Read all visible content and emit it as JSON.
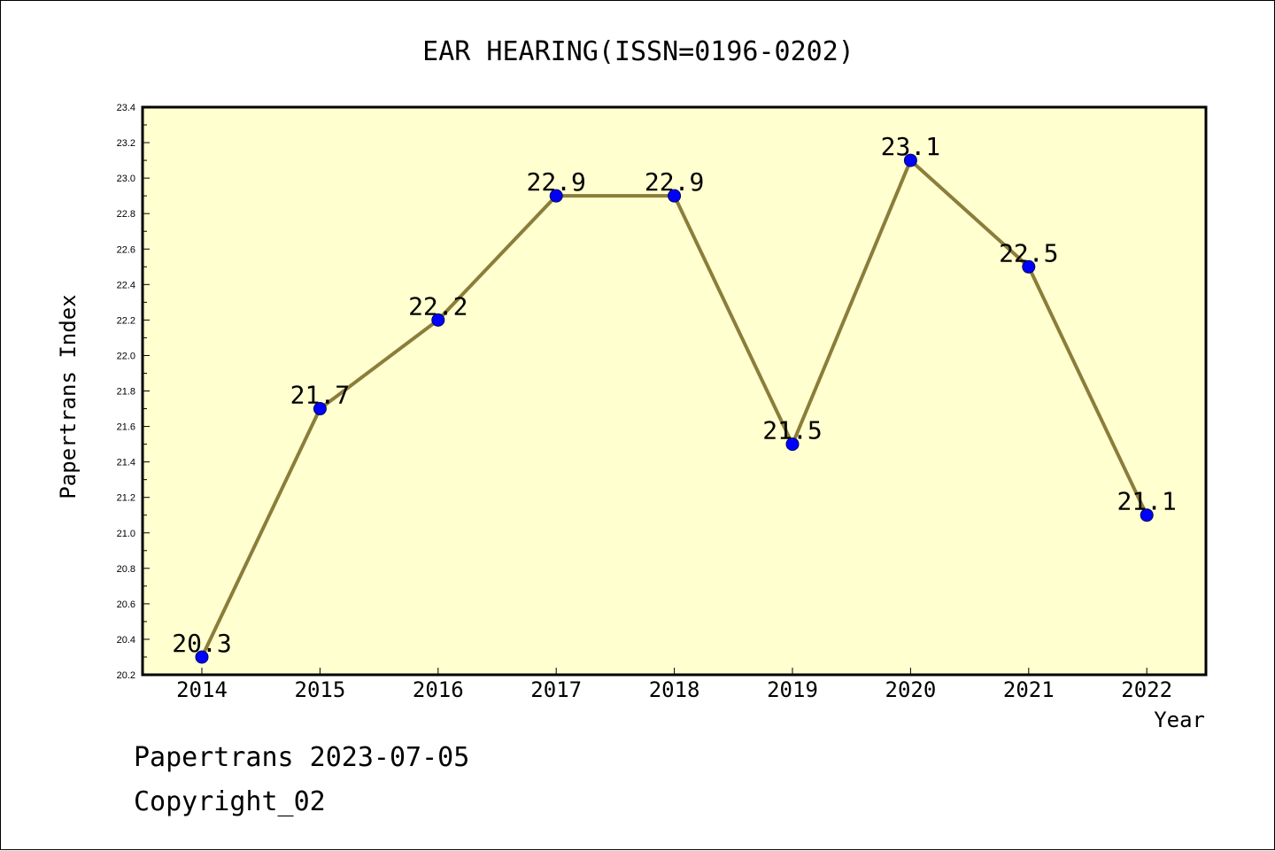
{
  "chart_data": {
    "type": "line",
    "title": "EAR HEARING(ISSN=0196-0202)",
    "xlabel": "Year",
    "ylabel": "Papertrans Index",
    "categories": [
      "2014",
      "2015",
      "2016",
      "2017",
      "2018",
      "2019",
      "2020",
      "2021",
      "2022"
    ],
    "series": [
      {
        "values": [
          20.3,
          21.7,
          22.2,
          22.9,
          22.9,
          21.5,
          23.1,
          22.5,
          21.1
        ]
      }
    ],
    "data_labels": [
      "20.3",
      "21.7",
      "22.2",
      "22.9",
      "22.9",
      "21.5",
      "23.1",
      "22.5",
      "21.1"
    ],
    "ylim": [
      20.2,
      23.4
    ],
    "yticks": [
      "20.2",
      "20.4",
      "20.6",
      "20.8",
      "21.0",
      "21.2",
      "21.4",
      "21.6",
      "21.8",
      "22.0",
      "22.2",
      "22.4",
      "22.6",
      "22.8",
      "23.0",
      "23.2",
      "23.4"
    ],
    "grid": false,
    "legend": "none",
    "colors": {
      "line": "#8b7d3a",
      "marker": "#0000ff",
      "plot_background": "#ffffd0",
      "axes": "#000000"
    }
  },
  "footer": {
    "line1": "Papertrans 2023-07-05",
    "line2": "Copyright_02"
  }
}
